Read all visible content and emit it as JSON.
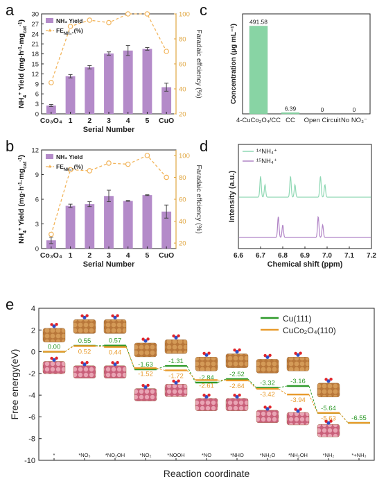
{
  "colors": {
    "bar": "#b48bc9",
    "fe_line": "#f2b45a",
    "green_bar": "#88d4a4",
    "nmr_14": "#8fd8b4",
    "nmr_15": "#b184c6",
    "cu111": "#2e9a2a",
    "cuco": "#e89a2a",
    "right_axis": "#e0a640"
  },
  "icon_names": [
    "copper-slab-icon",
    "cuco2o4-slab-icon",
    "adsorbate-molecule-icon"
  ],
  "chart_data": [
    {
      "panel": "a",
      "type": "bar",
      "categories": [
        "Co₃O₄",
        "1",
        "2",
        "3",
        "4",
        "5",
        "CuO"
      ],
      "series": [
        {
          "name": "NH₃ Yield",
          "values": [
            2.5,
            11.3,
            14.0,
            18.1,
            19.0,
            19.5,
            8.0
          ],
          "errors": [
            0.3,
            0.5,
            0.5,
            0.5,
            1.5,
            0.4,
            1.2
          ]
        },
        {
          "name": "FE",
          "sub": "NH₄⁺",
          "suffix": "(%)",
          "values": [
            45,
            90,
            95,
            93,
            100,
            100,
            70
          ]
        }
      ],
      "xlabel": "Serial Number",
      "ylabel": "NH₄⁺ Yield (mg·h⁻¹·mg⁻¹cat)",
      "ylabel_parts": [
        "NH",
        "4",
        "+",
        " Yield (mg·h",
        "-1",
        "·mg",
        "cat",
        "-1",
        ")"
      ],
      "ylim": [
        0,
        30
      ],
      "yticks": [
        "0",
        "3",
        "6",
        "9",
        "12",
        "15",
        "18",
        "21",
        "24",
        "27",
        "30"
      ],
      "y2label": "Faradaic effciency (%)",
      "y2lim": [
        20,
        100
      ],
      "y2ticks": [
        "20",
        "40",
        "60",
        "80",
        "100"
      ]
    },
    {
      "panel": "b",
      "type": "bar",
      "categories": [
        "Co₃O₄",
        "1",
        "2",
        "3",
        "4",
        "5",
        "CuO"
      ],
      "series": [
        {
          "name": "NH₃ Yield",
          "values": [
            1.0,
            5.2,
            5.4,
            6.4,
            5.8,
            6.5,
            4.5
          ],
          "errors": [
            0.4,
            0.2,
            0.3,
            0.7,
            0.05,
            0.05,
            0.8
          ]
        },
        {
          "name": "FE",
          "sub": "NH₄⁺",
          "suffix": "(%)",
          "values": [
            28,
            87,
            86,
            93,
            92,
            100,
            80
          ]
        }
      ],
      "xlabel": "Serial Number",
      "ylabel": "NH₄⁺ Yield (mg·h⁻¹·mg⁻¹cat)",
      "ylabel_parts": [
        "NH",
        "4",
        "+",
        " Yield (mg·h",
        "-1",
        "·mg",
        "cat",
        "-1",
        ")"
      ],
      "ylim": [
        0,
        12
      ],
      "yticks": [
        "0",
        "3",
        "6",
        "9",
        "12"
      ],
      "y2label": "Faradaic effciency (%)",
      "y2lim": [
        15,
        105
      ],
      "y2ticks": [
        "20",
        "40",
        "60",
        "80",
        "100"
      ]
    },
    {
      "panel": "c",
      "type": "bar",
      "categories": [
        "4-CuCo₂O₄/CC",
        "CC",
        "Open Circuit",
        "No NO₃⁻"
      ],
      "values": [
        491.58,
        6.39,
        0,
        0
      ],
      "data_labels": [
        "491.58",
        "6.39",
        "0",
        "0"
      ],
      "ylabel": "Concentration (μg mL⁻¹)",
      "ylim": [
        0,
        560
      ]
    },
    {
      "panel": "d",
      "type": "line",
      "series": [
        {
          "name": "¹⁴NH₄⁺",
          "peaks": [
            6.7,
            6.72,
            6.835,
            6.855,
            6.97,
            6.99
          ]
        },
        {
          "name": "¹⁵NH₄⁺",
          "peaks": [
            6.78,
            6.8,
            6.96,
            6.98
          ]
        }
      ],
      "xlabel": "Chemical shift (ppm)",
      "ylabel": "Intensity (a.u.)",
      "xlim": [
        6.6,
        7.2
      ],
      "xticks": [
        "6.6",
        "6.7",
        "6.8",
        "6.9",
        "7.0",
        "7.1",
        "7.2"
      ]
    },
    {
      "panel": "e",
      "type": "line",
      "categories": [
        "*",
        "*NO₃",
        "*NO₂OH",
        "*NO₂",
        "*NOOH",
        "*NO",
        "*NHO",
        "*NH₂O",
        "*NH₂OH",
        "*NH₂",
        "*+NH₃"
      ],
      "series": [
        {
          "name": "Cu(111)",
          "values": [
            0.0,
            0.55,
            0.57,
            -1.63,
            -1.31,
            -2.84,
            -2.52,
            -3.32,
            -3.16,
            -5.64,
            -6.55
          ],
          "labels": [
            "0.00",
            "0.55",
            "0.57",
            "-1.63",
            "-1.31",
            "-2.84",
            "-2.52",
            "-3.32",
            "-3.16",
            "-5.64",
            "-6.55"
          ]
        },
        {
          "name": "CuCo₂O₄(110)",
          "values": [
            0.0,
            0.52,
            0.44,
            -1.52,
            -1.72,
            -2.61,
            -2.64,
            -3.42,
            -3.94,
            -5.63,
            -6.55
          ],
          "labels": [
            "",
            "0.52",
            "0.44",
            "-1.52",
            "-1.72",
            "-2.61",
            "-2.64",
            "-3.42",
            "-3.94",
            "-5.63",
            ""
          ]
        }
      ],
      "xlabel": "Reaction coordinate",
      "ylabel": "Free energy(eV)",
      "ylim": [
        -10,
        4
      ],
      "yticks": [
        "4",
        "2",
        "0",
        "-2",
        "-4",
        "-6",
        "-8",
        "-10"
      ]
    }
  ],
  "panel_labels": [
    "a",
    "b",
    "c",
    "d",
    "e"
  ]
}
